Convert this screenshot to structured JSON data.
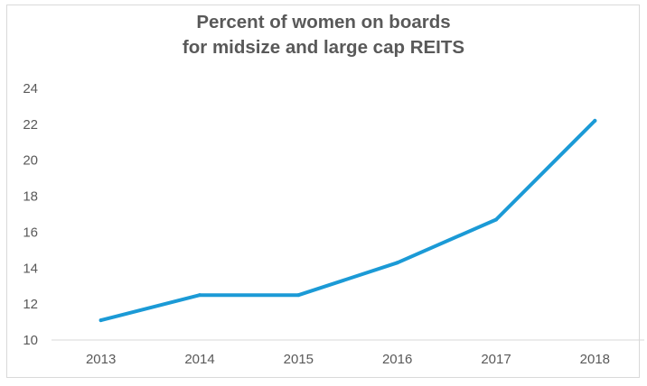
{
  "chart_data": {
    "type": "line",
    "title_lines": [
      "Percent of women on boards",
      "for midsize and large cap REITS"
    ],
    "xlabel": "",
    "ylabel": "",
    "categories": [
      "2013",
      "2014",
      "2015",
      "2016",
      "2017",
      "2018"
    ],
    "series": [
      {
        "name": "Percent of women on boards",
        "values": [
          11.1,
          12.5,
          12.5,
          14.3,
          16.7,
          22.2
        ],
        "color": "#1b9ad6"
      }
    ],
    "ylim": [
      10,
      24
    ],
    "yticks": [
      10,
      12,
      14,
      16,
      18,
      20,
      22,
      24
    ],
    "ytick_labels": [
      "10",
      "12",
      "14",
      "16",
      "18",
      "20",
      "22",
      "24"
    ],
    "grid": false,
    "legend": "none"
  },
  "colors": {
    "line": "#1b9ad6",
    "axis": "#d9d9d9",
    "text": "#595959"
  }
}
